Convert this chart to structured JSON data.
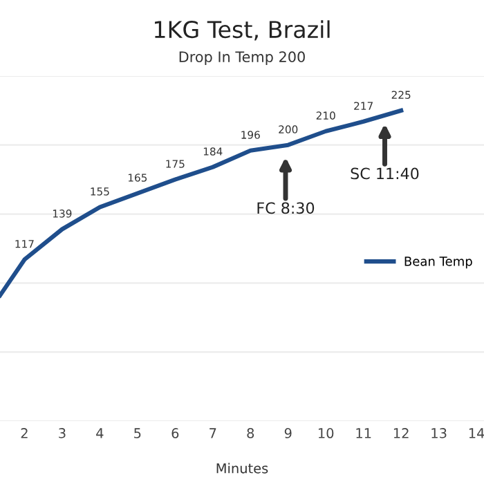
{
  "chart_data": {
    "type": "line",
    "title": "1KG Test, Brazil",
    "subtitle": "Drop In Temp 200",
    "xlabel": "Minutes",
    "x": [
      1.35,
      2,
      3,
      4,
      5,
      6,
      7,
      8,
      9,
      10,
      11,
      12
    ],
    "series": [
      {
        "name": "Bean Temp",
        "color": "#1f4e8c",
        "values": [
          91,
          117,
          139,
          155,
          165,
          175,
          184,
          196,
          200,
          210,
          217,
          225
        ],
        "value_labels": [
          null,
          "117",
          "139",
          "155",
          "165",
          "175",
          "184",
          "196",
          "200",
          "210",
          "217",
          "225"
        ]
      }
    ],
    "xlim": [
      1.35,
      14.2
    ],
    "xticks": [
      2,
      3,
      4,
      5,
      6,
      7,
      8,
      9,
      10,
      11,
      12,
      13,
      14
    ],
    "ylim": [
      0,
      250
    ],
    "yticks": [
      {
        "value": 0,
        "label": null
      },
      {
        "value": 50,
        "label": null
      },
      {
        "value": 100,
        "label": null
      },
      {
        "value": 150,
        "label": null
      },
      {
        "value": 200,
        "label": null
      },
      {
        "value": 250,
        "label": null
      }
    ],
    "tick_labels": "x",
    "grid": "y",
    "legend": "right",
    "marker": "none",
    "line_style": "solid",
    "annotations": [
      "FC 8:30",
      "SC 11:40"
    ]
  }
}
